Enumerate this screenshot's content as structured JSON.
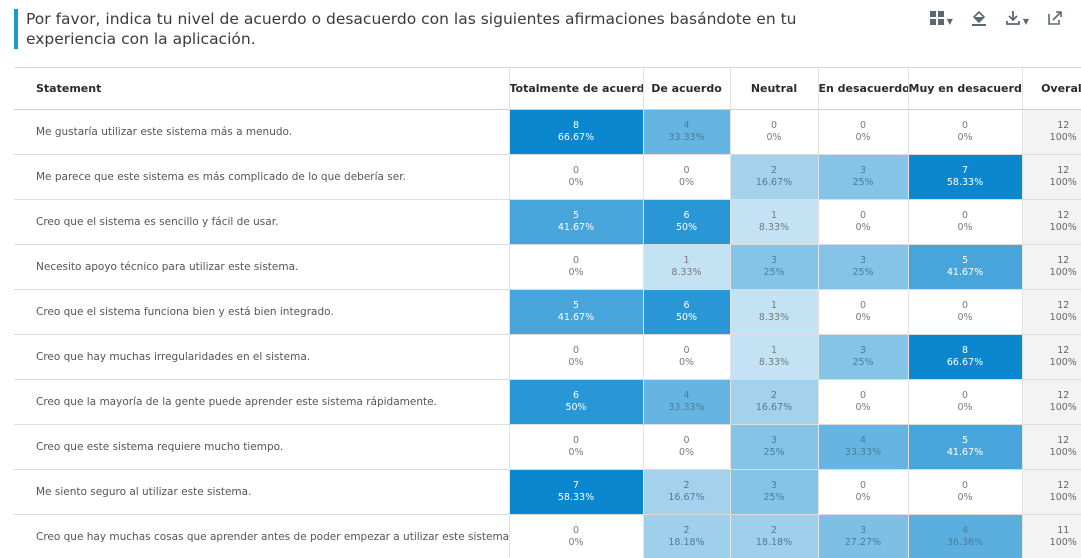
{
  "header": {
    "title": "Por favor, indica tu nivel de acuerdo o desacuerdo con las siguientes afirmaciones basándote en tu experiencia con la aplicación.",
    "toolbar": [
      {
        "icon": "chart-type-icon",
        "has_caret": true
      },
      {
        "icon": "paint-bucket-icon",
        "has_caret": false
      },
      {
        "icon": "download-icon",
        "has_caret": true
      },
      {
        "icon": "share-icon",
        "has_caret": false
      }
    ]
  },
  "table": {
    "columns": [
      "Statement",
      "Totalmente de acuerdo",
      "De acuerdo",
      "Neutral",
      "En desacuerdo",
      "Muy en desacuerdo",
      "Overall"
    ],
    "colors": {
      "max": "#0a87cf",
      "min": "#ffffff",
      "overall_bg": "#f3f3f3"
    },
    "rows": [
      {
        "statement": "Me gustaría utilizar este sistema más a menudo.",
        "cells": [
          {
            "count": "8",
            "pct": "66.67%"
          },
          {
            "count": "4",
            "pct": "33.33%"
          },
          {
            "count": "0",
            "pct": "0%"
          },
          {
            "count": "0",
            "pct": "0%"
          },
          {
            "count": "0",
            "pct": "0%"
          }
        ],
        "overall": {
          "count": "12",
          "pct": "100%"
        }
      },
      {
        "statement": "Me parece que este sistema es más complicado de lo que debería ser.",
        "cells": [
          {
            "count": "0",
            "pct": "0%"
          },
          {
            "count": "0",
            "pct": "0%"
          },
          {
            "count": "2",
            "pct": "16.67%"
          },
          {
            "count": "3",
            "pct": "25%"
          },
          {
            "count": "7",
            "pct": "58.33%"
          }
        ],
        "overall": {
          "count": "12",
          "pct": "100%"
        }
      },
      {
        "statement": "Creo que el sistema es sencillo y fácil de usar.",
        "cells": [
          {
            "count": "5",
            "pct": "41.67%"
          },
          {
            "count": "6",
            "pct": "50%"
          },
          {
            "count": "1",
            "pct": "8.33%"
          },
          {
            "count": "0",
            "pct": "0%"
          },
          {
            "count": "0",
            "pct": "0%"
          }
        ],
        "overall": {
          "count": "12",
          "pct": "100%"
        }
      },
      {
        "statement": "Necesito apoyo técnico para utilizar este sistema.",
        "cells": [
          {
            "count": "0",
            "pct": "0%"
          },
          {
            "count": "1",
            "pct": "8.33%"
          },
          {
            "count": "3",
            "pct": "25%"
          },
          {
            "count": "3",
            "pct": "25%"
          },
          {
            "count": "5",
            "pct": "41.67%"
          }
        ],
        "overall": {
          "count": "12",
          "pct": "100%"
        }
      },
      {
        "statement": "Creo que el sistema funciona bien y está bien integrado.",
        "cells": [
          {
            "count": "5",
            "pct": "41.67%"
          },
          {
            "count": "6",
            "pct": "50%"
          },
          {
            "count": "1",
            "pct": "8.33%"
          },
          {
            "count": "0",
            "pct": "0%"
          },
          {
            "count": "0",
            "pct": "0%"
          }
        ],
        "overall": {
          "count": "12",
          "pct": "100%"
        }
      },
      {
        "statement": "Creo que hay muchas irregularidades en el sistema.",
        "cells": [
          {
            "count": "0",
            "pct": "0%"
          },
          {
            "count": "0",
            "pct": "0%"
          },
          {
            "count": "1",
            "pct": "8.33%"
          },
          {
            "count": "3",
            "pct": "25%"
          },
          {
            "count": "8",
            "pct": "66.67%"
          }
        ],
        "overall": {
          "count": "12",
          "pct": "100%"
        }
      },
      {
        "statement": "Creo que la mayoría de la gente puede aprender este sistema rápidamente.",
        "cells": [
          {
            "count": "6",
            "pct": "50%"
          },
          {
            "count": "4",
            "pct": "33.33%"
          },
          {
            "count": "2",
            "pct": "16.67%"
          },
          {
            "count": "0",
            "pct": "0%"
          },
          {
            "count": "0",
            "pct": "0%"
          }
        ],
        "overall": {
          "count": "12",
          "pct": "100%"
        }
      },
      {
        "statement": "Creo que este sistema requiere mucho tiempo.",
        "cells": [
          {
            "count": "0",
            "pct": "0%"
          },
          {
            "count": "0",
            "pct": "0%"
          },
          {
            "count": "3",
            "pct": "25%"
          },
          {
            "count": "4",
            "pct": "33.33%"
          },
          {
            "count": "5",
            "pct": "41.67%"
          }
        ],
        "overall": {
          "count": "12",
          "pct": "100%"
        }
      },
      {
        "statement": "Me siento seguro al utilizar este sistema.",
        "cells": [
          {
            "count": "7",
            "pct": "58.33%"
          },
          {
            "count": "2",
            "pct": "16.67%"
          },
          {
            "count": "3",
            "pct": "25%"
          },
          {
            "count": "0",
            "pct": "0%"
          },
          {
            "count": "0",
            "pct": "0%"
          }
        ],
        "overall": {
          "count": "12",
          "pct": "100%"
        }
      },
      {
        "statement": "Creo que hay muchas cosas que aprender antes de poder empezar a utilizar este sistema.",
        "cells": [
          {
            "count": "0",
            "pct": "0%"
          },
          {
            "count": "2",
            "pct": "18.18%"
          },
          {
            "count": "2",
            "pct": "18.18%"
          },
          {
            "count": "3",
            "pct": "27.27%"
          },
          {
            "count": "4",
            "pct": "36.36%"
          }
        ],
        "overall": {
          "count": "11",
          "pct": "100%"
        }
      }
    ]
  }
}
